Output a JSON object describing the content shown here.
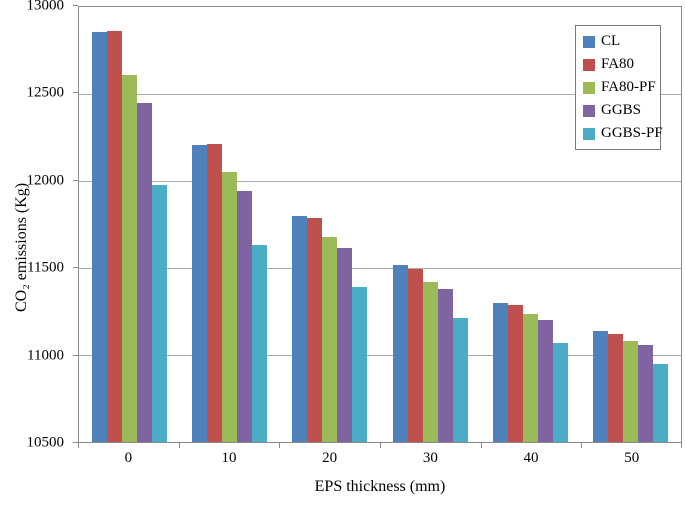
{
  "chart_data": {
    "type": "bar",
    "title": "",
    "xlabel": "EPS thickness (mm)",
    "ylabel": "CO₂ emissions (Kg)",
    "categories": [
      "0",
      "10",
      "20",
      "30",
      "40",
      "50"
    ],
    "series": [
      {
        "name": "CL",
        "color": "#4F81BD",
        "values": [
          12855,
          12205,
          11800,
          11515,
          11300,
          11140
        ]
      },
      {
        "name": "FA80",
        "color": "#C0504D",
        "values": [
          12865,
          12210,
          11785,
          11495,
          11285,
          11120
        ]
      },
      {
        "name": "FA80-PF",
        "color": "#9BBB59",
        "values": [
          12610,
          12050,
          11680,
          11420,
          11235,
          11080
        ]
      },
      {
        "name": "GGBS",
        "color": "#8064A2",
        "values": [
          12450,
          11945,
          11615,
          11380,
          11200,
          11060
        ]
      },
      {
        "name": "GGBS-PF",
        "color": "#4BACC6",
        "values": [
          11975,
          11630,
          11390,
          11210,
          11070,
          10950
        ]
      }
    ],
    "ylim": [
      10500,
      13000
    ],
    "yticks": [
      13000,
      12500,
      12000,
      11500,
      11000,
      10500
    ],
    "grid": true,
    "legend_position": "top-right",
    "axis_color": "#8a8a8a",
    "gridline_color": "#ababab"
  }
}
